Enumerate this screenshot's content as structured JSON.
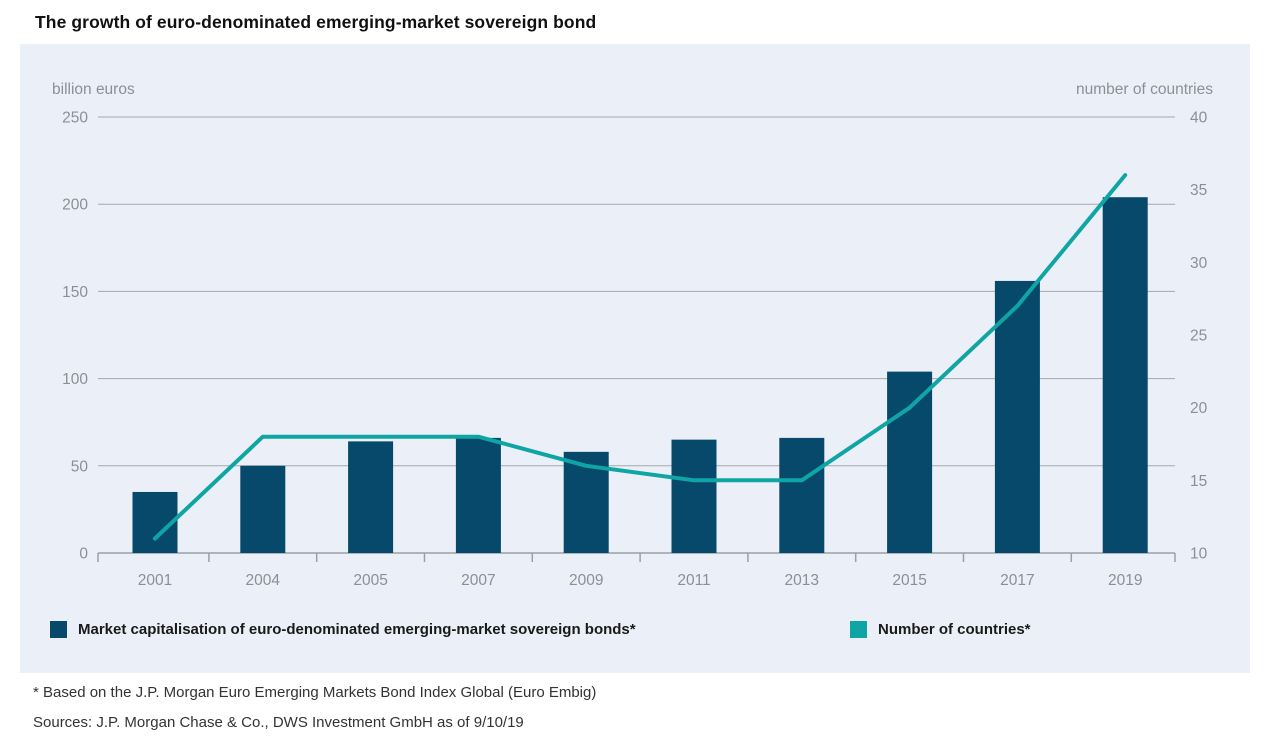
{
  "title": "The growth of euro-denominated emerging-market sovereign bond",
  "colors": {
    "panel_background": "#ebeff7",
    "bar": "#06496b",
    "line": "#10a5a5",
    "gridline": "#a6a9ae",
    "axis": "#9aa0a8",
    "tick_label": "#8b8f96",
    "axis_header": "#8b9097",
    "title_text": "#111111",
    "footnote_text": "#333333"
  },
  "chart_data": {
    "type": "bar+line",
    "categories": [
      "2001",
      "2004",
      "2005",
      "2007",
      "2009",
      "2011",
      "2013",
      "2015",
      "2017",
      "2019"
    ],
    "series": [
      {
        "name": "Market capitalisation of euro-denominated emerging-market sovereign bonds*",
        "type": "bar",
        "axis": "left",
        "color": "#06496b",
        "values": [
          35,
          50,
          64,
          66,
          58,
          65,
          66,
          104,
          156,
          204
        ]
      },
      {
        "name": "Number of countries*",
        "type": "line",
        "axis": "right",
        "color": "#10a5a5",
        "values": [
          11,
          18,
          18,
          18,
          16,
          15,
          15,
          20,
          27,
          36
        ]
      }
    ],
    "left_axis": {
      "label": "billion euros",
      "ticks": [
        0,
        50,
        100,
        150,
        200,
        250
      ],
      "range": [
        0,
        250
      ]
    },
    "right_axis": {
      "label": "number of countries",
      "ticks": [
        10,
        15,
        20,
        25,
        30,
        35,
        40
      ],
      "range": [
        10,
        40
      ]
    },
    "grid": true,
    "legend_position": "bottom"
  },
  "legend": {
    "items": [
      {
        "label": "Market capitalisation of euro-denominated emerging-market sovereign bonds*",
        "color": "#06496b"
      },
      {
        "label": "Number of countries*",
        "color": "#10a5a5"
      }
    ]
  },
  "footnotes": [
    "* Based on the J.P. Morgan Euro Emerging Markets Bond Index Global (Euro Embig)",
    "Sources: J.P. Morgan Chase & Co., DWS Investment GmbH as of 9/10/19"
  ]
}
